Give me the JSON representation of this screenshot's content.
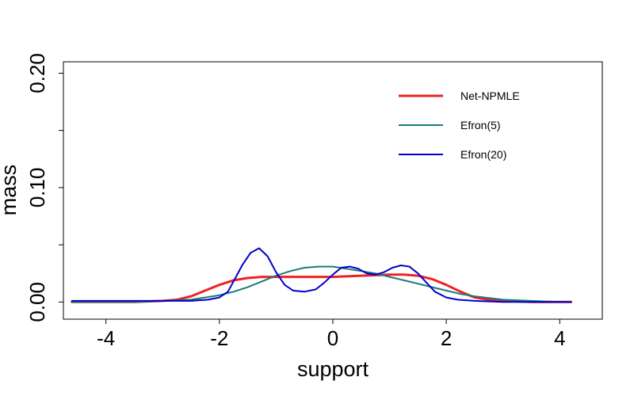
{
  "chart_data": {
    "type": "line",
    "title": "",
    "xlabel": "support",
    "ylabel": "mass",
    "xlim": [
      -4.75,
      4.75
    ],
    "ylim": [
      -0.015,
      0.21
    ],
    "xticks": [
      -4,
      -2,
      0,
      2,
      4
    ],
    "xtick_labels": [
      "-4",
      "-2",
      "0",
      "2",
      "4"
    ],
    "yticks": [
      0.0,
      0.05,
      0.1,
      0.15,
      0.2
    ],
    "ytick_labels": [
      "0.00",
      "",
      "0.10",
      "",
      "0.20"
    ],
    "grid": false,
    "legend_position": "top-right",
    "series": [
      {
        "name": "Net-NPMLE",
        "color": "#ee2222",
        "line_width": 3,
        "x": [
          -4.6,
          -4.0,
          -3.5,
          -3.0,
          -2.75,
          -2.5,
          -2.25,
          -2.0,
          -1.75,
          -1.5,
          -1.25,
          -1.0,
          -0.5,
          0.0,
          0.5,
          1.0,
          1.25,
          1.5,
          1.75,
          2.0,
          2.25,
          2.5,
          2.75,
          3.0,
          3.5,
          4.0,
          4.2
        ],
        "y": [
          0.0,
          0.0,
          0.0,
          0.001,
          0.002,
          0.005,
          0.01,
          0.015,
          0.019,
          0.021,
          0.022,
          0.022,
          0.022,
          0.022,
          0.023,
          0.024,
          0.024,
          0.023,
          0.02,
          0.015,
          0.009,
          0.004,
          0.002,
          0.001,
          0.0,
          0.0,
          0.0
        ]
      },
      {
        "name": "Efron(5)",
        "color": "#1a7a7a",
        "line_width": 2,
        "x": [
          -4.6,
          -4.0,
          -3.5,
          -3.0,
          -2.5,
          -2.0,
          -1.75,
          -1.5,
          -1.25,
          -1.0,
          -0.75,
          -0.5,
          -0.25,
          0.0,
          0.25,
          0.5,
          0.75,
          1.0,
          1.25,
          1.5,
          1.75,
          2.0,
          2.25,
          2.5,
          3.0,
          3.5,
          4.0,
          4.2
        ],
        "y": [
          0.0,
          0.0,
          0.0,
          0.001,
          0.002,
          0.006,
          0.009,
          0.013,
          0.018,
          0.023,
          0.027,
          0.03,
          0.031,
          0.031,
          0.029,
          0.027,
          0.025,
          0.022,
          0.019,
          0.016,
          0.013,
          0.01,
          0.007,
          0.005,
          0.002,
          0.001,
          0.0,
          0.0
        ]
      },
      {
        "name": "Efron(20)",
        "color": "#0000cc",
        "line_width": 2,
        "x": [
          -4.6,
          -4.0,
          -3.5,
          -3.0,
          -2.5,
          -2.2,
          -2.0,
          -1.85,
          -1.75,
          -1.6,
          -1.45,
          -1.3,
          -1.15,
          -1.0,
          -0.85,
          -0.7,
          -0.5,
          -0.3,
          -0.15,
          0.0,
          0.15,
          0.3,
          0.45,
          0.6,
          0.75,
          0.9,
          1.05,
          1.2,
          1.35,
          1.5,
          1.65,
          1.8,
          2.0,
          2.2,
          2.5,
          3.0,
          3.5,
          4.0,
          4.2
        ],
        "y": [
          0.001,
          0.001,
          0.001,
          0.001,
          0.001,
          0.002,
          0.004,
          0.009,
          0.018,
          0.032,
          0.043,
          0.047,
          0.04,
          0.026,
          0.015,
          0.01,
          0.009,
          0.011,
          0.017,
          0.024,
          0.03,
          0.031,
          0.029,
          0.025,
          0.024,
          0.026,
          0.03,
          0.032,
          0.031,
          0.025,
          0.017,
          0.009,
          0.004,
          0.002,
          0.001,
          0.0,
          0.0,
          0.0,
          0.0
        ]
      }
    ]
  }
}
